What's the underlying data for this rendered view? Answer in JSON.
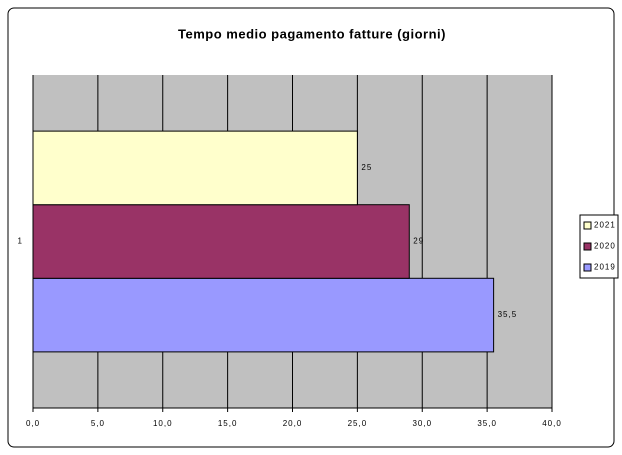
{
  "chart_data": {
    "type": "barh",
    "title": "Tempo medio pagamento fatture (giorni)",
    "categories": [
      "1"
    ],
    "series": [
      {
        "name": "2019",
        "color": "#9999ff",
        "values": [
          35.5
        ],
        "value_labels": [
          "35,5"
        ]
      },
      {
        "name": "2020",
        "color": "#993366",
        "values": [
          29
        ],
        "value_labels": [
          "29"
        ]
      },
      {
        "name": "2021",
        "color": "#ffffcc",
        "values": [
          25
        ],
        "value_labels": [
          "25"
        ]
      }
    ],
    "xlim": [
      0,
      40
    ],
    "xticks": [
      {
        "value": 0,
        "label": "0,0"
      },
      {
        "value": 5,
        "label": "5,0"
      },
      {
        "value": 10,
        "label": "10,0"
      },
      {
        "value": 15,
        "label": "15,0"
      },
      {
        "value": 20,
        "label": "20,0"
      },
      {
        "value": 25,
        "label": "25,0"
      },
      {
        "value": 30,
        "label": "30,0"
      },
      {
        "value": 35,
        "label": "35,0"
      },
      {
        "value": 40,
        "label": "40,0"
      }
    ],
    "grid": true,
    "legend": "right"
  }
}
